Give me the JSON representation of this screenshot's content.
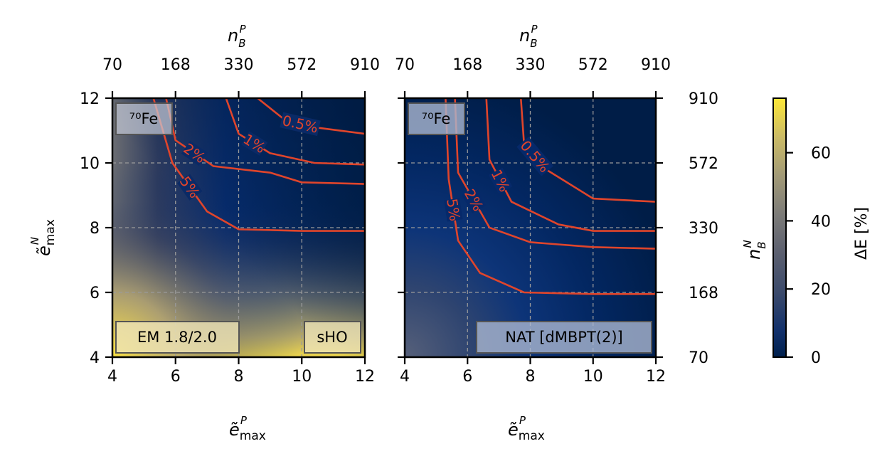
{
  "chart_data": [
    {
      "type": "heatmap",
      "panel": "left",
      "nucleus_label": "⁷⁰Fe",
      "interaction_label": "EM 1.8/2.0",
      "basis_label": "sHO",
      "xlabel": "ẽ",
      "xlabel_sub": "max",
      "xlabel_sup": "P",
      "ylabel": "ẽ",
      "ylabel_sub": "max",
      "ylabel_sup": "N",
      "top_xlabel": "n",
      "top_xlabel_sub": "B",
      "top_xlabel_sup": "P",
      "xlim": [
        4,
        12
      ],
      "ylim": [
        4,
        12
      ],
      "x_ticks": [
        "4",
        "6",
        "8",
        "10",
        "12"
      ],
      "y_ticks": [
        "4",
        "6",
        "8",
        "10",
        "12"
      ],
      "top_ticks": [
        "70",
        "168",
        "330",
        "572",
        "910"
      ],
      "grid": true,
      "contours": [
        {
          "label": "0.5%",
          "points": [
            [
              8.6,
              12
            ],
            [
              9.5,
              11.3
            ],
            [
              10.4,
              11.1
            ],
            [
              12,
              10.9
            ]
          ]
        },
        {
          "label": "1%",
          "points": [
            [
              7.6,
              12
            ],
            [
              8.0,
              10.9
            ],
            [
              9.0,
              10.3
            ],
            [
              10.4,
              10.0
            ],
            [
              12,
              9.95
            ]
          ]
        },
        {
          "label": "2%",
          "points": [
            [
              5.7,
              12
            ],
            [
              6.0,
              10.7
            ],
            [
              7.2,
              9.9
            ],
            [
              9.0,
              9.7
            ],
            [
              10.0,
              9.4
            ],
            [
              12,
              9.35
            ]
          ]
        },
        {
          "label": "5%",
          "points": [
            [
              5.3,
              12
            ],
            [
              5.9,
              10.0
            ],
            [
              7.0,
              8.5
            ],
            [
              8.0,
              7.95
            ],
            [
              10.0,
              7.9
            ],
            [
              12,
              7.9
            ]
          ]
        }
      ]
    },
    {
      "type": "heatmap",
      "panel": "right",
      "nucleus_label": "⁷⁰Fe",
      "interaction_label": "NAT [dMBPT(2)]",
      "xlabel": "ẽ",
      "xlabel_sub": "max",
      "xlabel_sup": "P",
      "top_xlabel": "n",
      "top_xlabel_sub": "B",
      "top_xlabel_sup": "P",
      "right_ylabel": "n",
      "right_ylabel_sub": "B",
      "right_ylabel_sup": "N",
      "xlim": [
        4,
        12
      ],
      "ylim": [
        4,
        12
      ],
      "x_ticks": [
        "4",
        "6",
        "8",
        "10",
        "12"
      ],
      "top_ticks": [
        "70",
        "168",
        "330",
        "572",
        "910"
      ],
      "right_ticks": [
        "70",
        "168",
        "330",
        "572",
        "910"
      ],
      "grid": true,
      "contours": [
        {
          "label": "0.5%",
          "points": [
            [
              7.7,
              12
            ],
            [
              7.8,
              10.6
            ],
            [
              8.5,
              9.8
            ],
            [
              10.0,
              8.9
            ],
            [
              12,
              8.8
            ]
          ]
        },
        {
          "label": "1%",
          "points": [
            [
              6.6,
              12
            ],
            [
              6.7,
              10.1
            ],
            [
              7.4,
              8.8
            ],
            [
              8.9,
              8.1
            ],
            [
              10.0,
              7.9
            ],
            [
              12,
              7.9
            ]
          ]
        },
        {
          "label": "2%",
          "points": [
            [
              5.6,
              12
            ],
            [
              5.7,
              9.7
            ],
            [
              6.7,
              8.0
            ],
            [
              8.0,
              7.55
            ],
            [
              10.0,
              7.4
            ],
            [
              12,
              7.35
            ]
          ]
        },
        {
          "label": "5%",
          "points": [
            [
              5.3,
              12
            ],
            [
              5.4,
              9.5
            ],
            [
              5.7,
              7.6
            ],
            [
              6.4,
              6.6
            ],
            [
              7.8,
              6.0
            ],
            [
              10.0,
              5.95
            ],
            [
              12,
              5.95
            ]
          ]
        }
      ]
    }
  ],
  "colorbar": {
    "label": "ΔE [%]",
    "ticks": [
      "0",
      "20",
      "40",
      "60"
    ],
    "range": [
      0,
      76
    ],
    "colors": {
      "low": "#00204d",
      "mid": "#7c7b78",
      "high": "#fde737"
    }
  },
  "contour_color": "#e0452b"
}
